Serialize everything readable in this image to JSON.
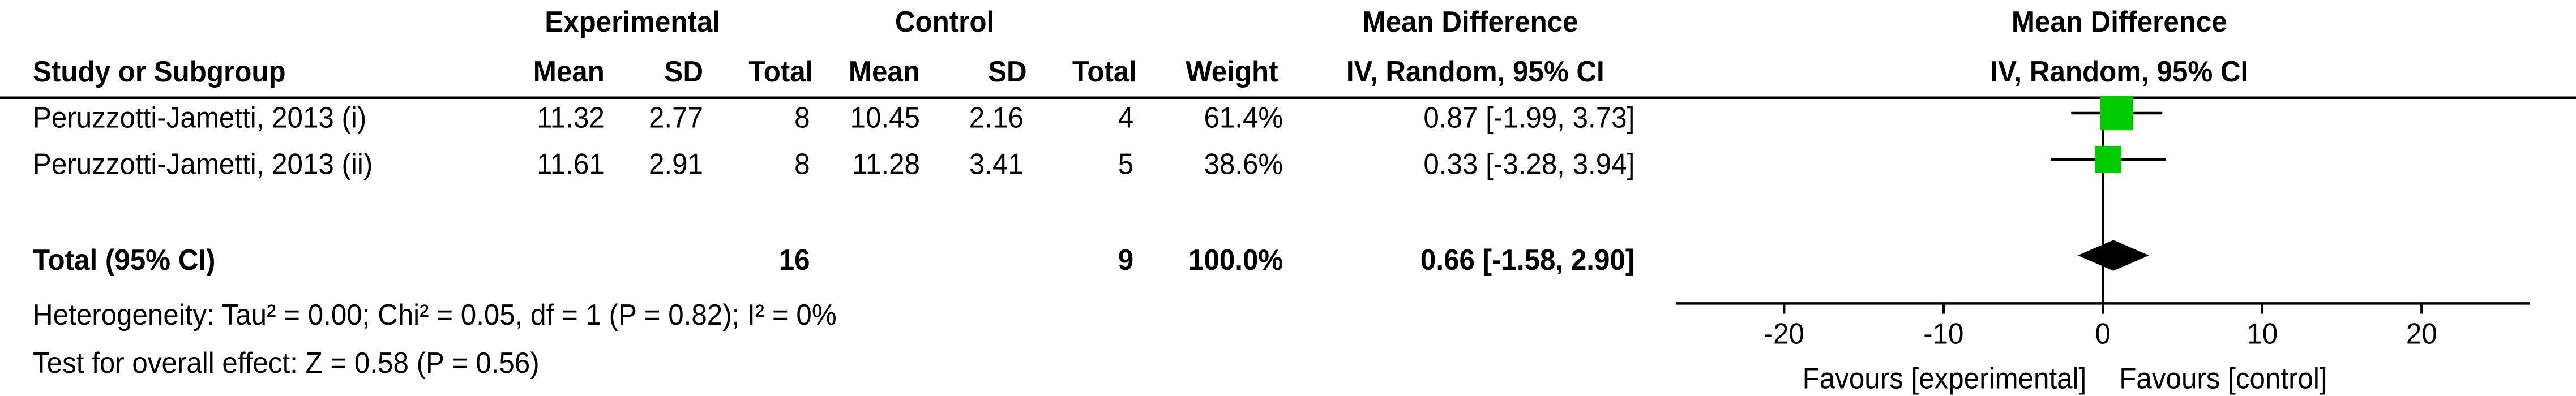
{
  "chart_data": {
    "type": "forest",
    "group_headers": {
      "experimental": "Experimental",
      "control": "Control",
      "table_effect": "Mean Difference",
      "plot_effect": "Mean Difference"
    },
    "columns": {
      "study": "Study or Subgroup",
      "exp_mean": "Mean",
      "exp_sd": "SD",
      "exp_total": "Total",
      "ctl_mean": "Mean",
      "ctl_sd": "SD",
      "ctl_total": "Total",
      "weight": "Weight",
      "table_method": "IV, Random, 95% CI",
      "plot_method": "IV, Random, 95% CI"
    },
    "studies": [
      {
        "name": "Peruzzotti-Jametti, 2013 (i)",
        "exp_mean": 11.32,
        "exp_sd": 2.77,
        "exp_total": 8,
        "ctl_mean": 10.45,
        "ctl_sd": 2.16,
        "ctl_total": 4,
        "weight": 61.4,
        "weight_label": "61.4%",
        "md": 0.87,
        "ci": [
          -1.99,
          3.73
        ],
        "md_label": "0.87 [-1.99, 3.73]"
      },
      {
        "name": "Peruzzotti-Jametti, 2013 (ii)",
        "exp_mean": 11.61,
        "exp_sd": 2.91,
        "exp_total": 8,
        "ctl_mean": 11.28,
        "ctl_sd": 3.41,
        "ctl_total": 5,
        "weight": 38.6,
        "weight_label": "38.6%",
        "md": 0.33,
        "ci": [
          -3.28,
          3.94
        ],
        "md_label": "0.33 [-3.28, 3.94]"
      }
    ],
    "total": {
      "name": "Total (95% CI)",
      "exp_total": 16,
      "ctl_total": 9,
      "weight_label": "100.0%",
      "md": 0.66,
      "ci": [
        -1.58,
        2.9
      ],
      "md_label": "0.66 [-1.58, 2.90]"
    },
    "heterogeneity": "Heterogeneity: Tau² = 0.00; Chi² = 0.05, df = 1 (P = 0.82); I² = 0%",
    "overall_effect": "Test for overall effect: Z = 0.58 (P = 0.56)",
    "xlim": [
      -26.8,
      26.8
    ],
    "xticks": [
      -20,
      -10,
      0,
      10,
      20
    ],
    "favours_left": "Favours [experimental]",
    "favours_right": "Favours [control]",
    "square_color": "#00cc00",
    "diamond_color": "#000000"
  }
}
